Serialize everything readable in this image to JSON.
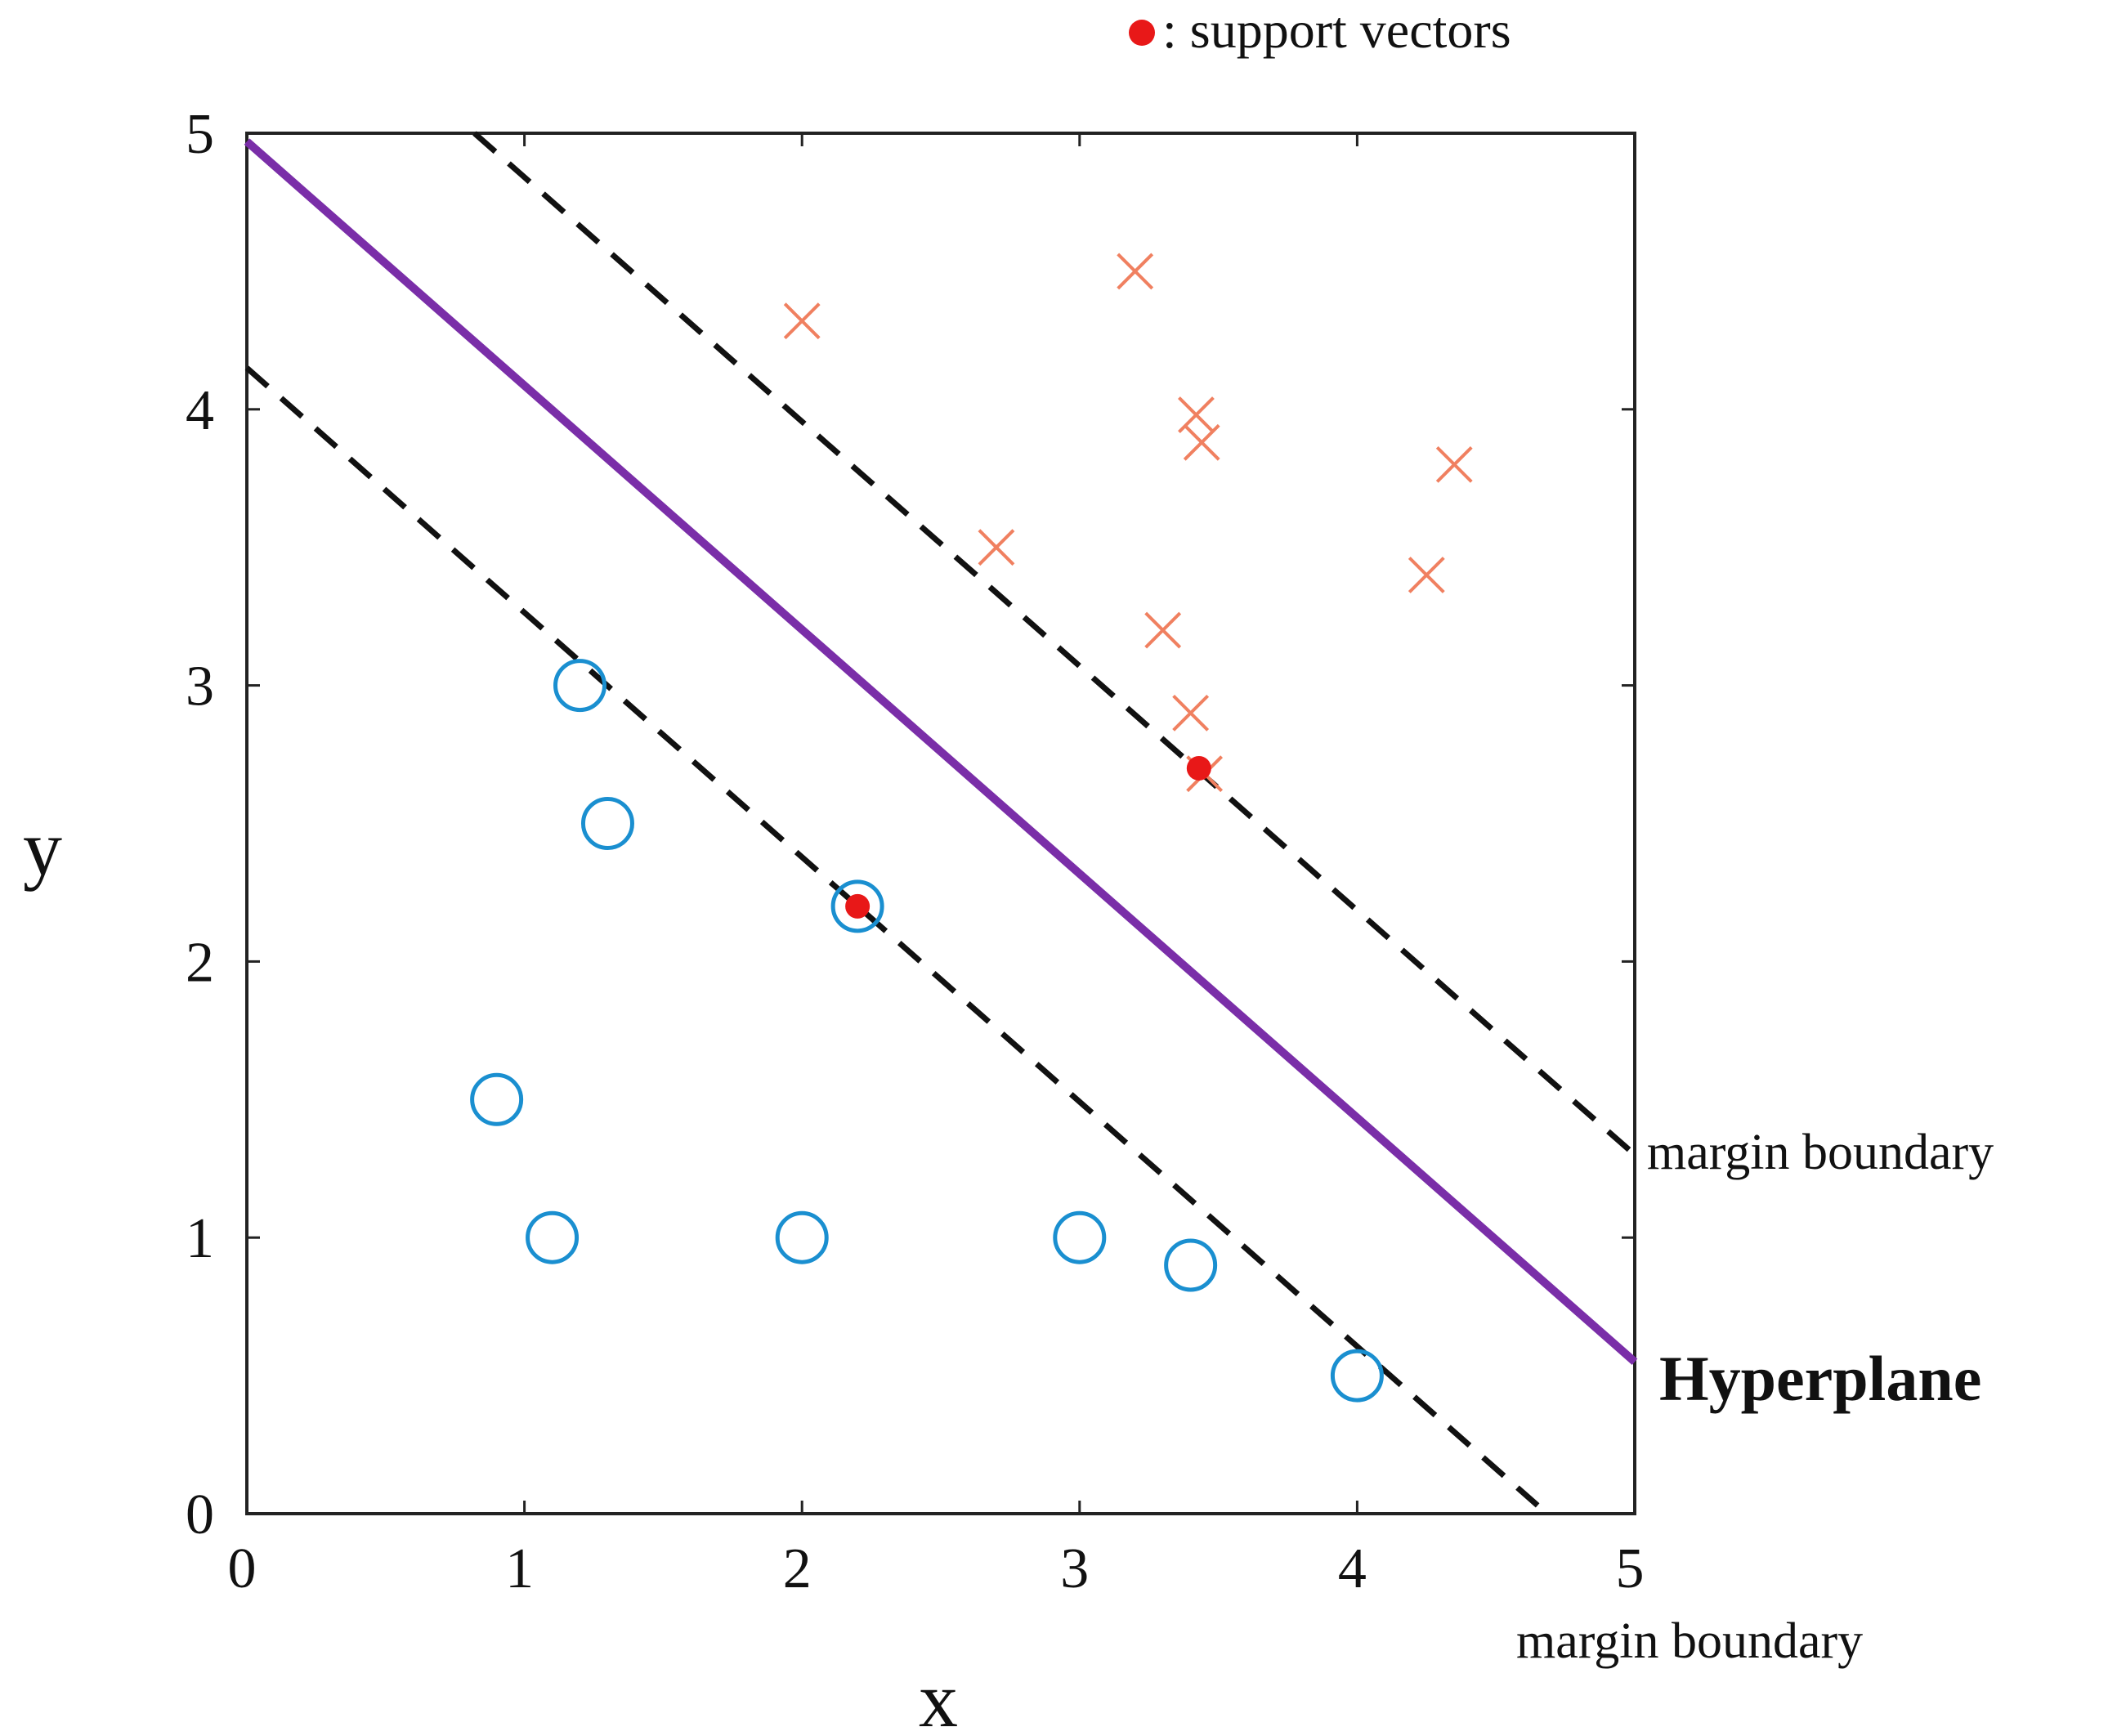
{
  "chart_data": {
    "type": "scatter",
    "title": "",
    "xlabel": "x",
    "ylabel": "y",
    "xlim": [
      0,
      5
    ],
    "ylim": [
      0,
      5
    ],
    "xticks": [
      "0",
      "1",
      "2",
      "3",
      "4",
      "5"
    ],
    "yticks": [
      "0",
      "1",
      "2",
      "3",
      "4",
      "5"
    ],
    "grid": false,
    "legend": {
      "label": ": support vectors",
      "placement": "top-right"
    },
    "colors": {
      "class_circle": "#1a8fd0",
      "class_cross": "#f08060",
      "support_vector": "#e81818",
      "hyperplane": "#7a2ea8",
      "margin": "#111111",
      "axes": "#222222"
    },
    "series": [
      {
        "name": "class-circle",
        "marker": "circle",
        "points": [
          [
            1.2,
            3.0
          ],
          [
            1.3,
            2.5
          ],
          [
            2.2,
            2.2
          ],
          [
            0.9,
            1.5
          ],
          [
            1.1,
            1.0
          ],
          [
            2.0,
            1.0
          ],
          [
            3.0,
            1.0
          ],
          [
            3.4,
            0.9
          ],
          [
            4.0,
            0.5
          ]
        ]
      },
      {
        "name": "class-cross",
        "marker": "x",
        "points": [
          [
            2.0,
            4.32
          ],
          [
            3.2,
            4.5
          ],
          [
            3.42,
            3.98
          ],
          [
            3.44,
            3.88
          ],
          [
            4.35,
            3.8
          ],
          [
            2.7,
            3.5
          ],
          [
            4.25,
            3.4
          ],
          [
            3.3,
            3.2
          ],
          [
            3.4,
            2.9
          ],
          [
            3.45,
            2.68
          ]
        ]
      },
      {
        "name": "support-vectors",
        "marker": "dot",
        "points": [
          [
            2.2,
            2.2
          ],
          [
            3.43,
            2.7
          ]
        ]
      }
    ],
    "lines": [
      {
        "name": "hyperplane",
        "style": "solid",
        "points": [
          [
            0,
            4.97
          ],
          [
            5,
            0.55
          ]
        ]
      },
      {
        "name": "margin-upper",
        "style": "dashed",
        "points": [
          [
            0.82,
            5.0
          ],
          [
            5,
            1.3
          ]
        ]
      },
      {
        "name": "margin-lower",
        "style": "dashed",
        "points": [
          [
            0,
            4.15
          ],
          [
            4.65,
            0.03
          ]
        ]
      }
    ],
    "annotations": {
      "margin_upper": "margin  boundary",
      "hyperplane": "Hyperplane",
      "margin_lower": "margin  boundary"
    }
  }
}
